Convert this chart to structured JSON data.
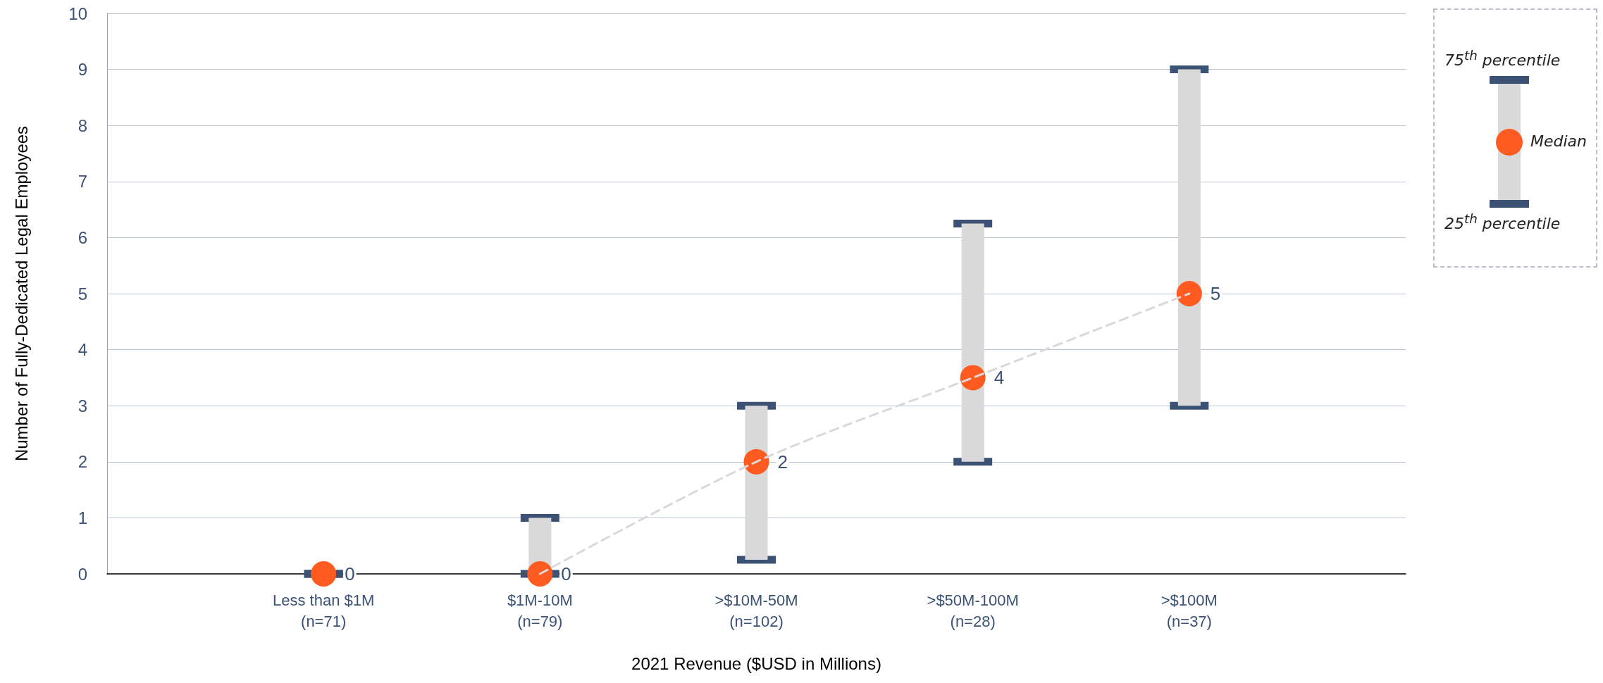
{
  "chart_data": {
    "type": "scatter",
    "xlabel": "2021 Revenue ($USD in Millions)",
    "ylabel": "Number of Fully-Dedicated Legal Employees",
    "categories": [
      "Less than $1M\n(n=71)",
      "$1M-10M\n(n=79)",
      ">$10M-50M\n(n=102)",
      ">$50M-100M\n(n=28)",
      ">$100M\n(n=37)"
    ],
    "series": [
      {
        "type": "line",
        "color": "#d9d9d9",
        "line_style": "dashed",
        "marker": "none",
        "values": [
          null,
          0,
          2,
          3.5,
          5
        ]
      },
      {
        "name": "Median",
        "color": "#ff5a1f",
        "marker": "circle",
        "values": [
          0,
          0,
          2,
          3.5,
          5
        ],
        "errors": [
          [
            0,
            0
          ],
          [
            0,
            1
          ],
          [
            0.25,
            3
          ],
          [
            2,
            6.25
          ],
          [
            3,
            9
          ]
        ],
        "value_labels": [
          "0",
          "0",
          "2",
          "4",
          "5"
        ]
      }
    ],
    "ylim": [
      0,
      10
    ],
    "yticks": [
      0,
      1,
      2,
      3,
      4,
      5,
      6,
      7,
      8,
      9,
      10
    ],
    "grid": "y",
    "legend": "right",
    "annotations": [
      "75$^{th}$ percentile",
      "25$^{th}$ percentile"
    ]
  }
}
